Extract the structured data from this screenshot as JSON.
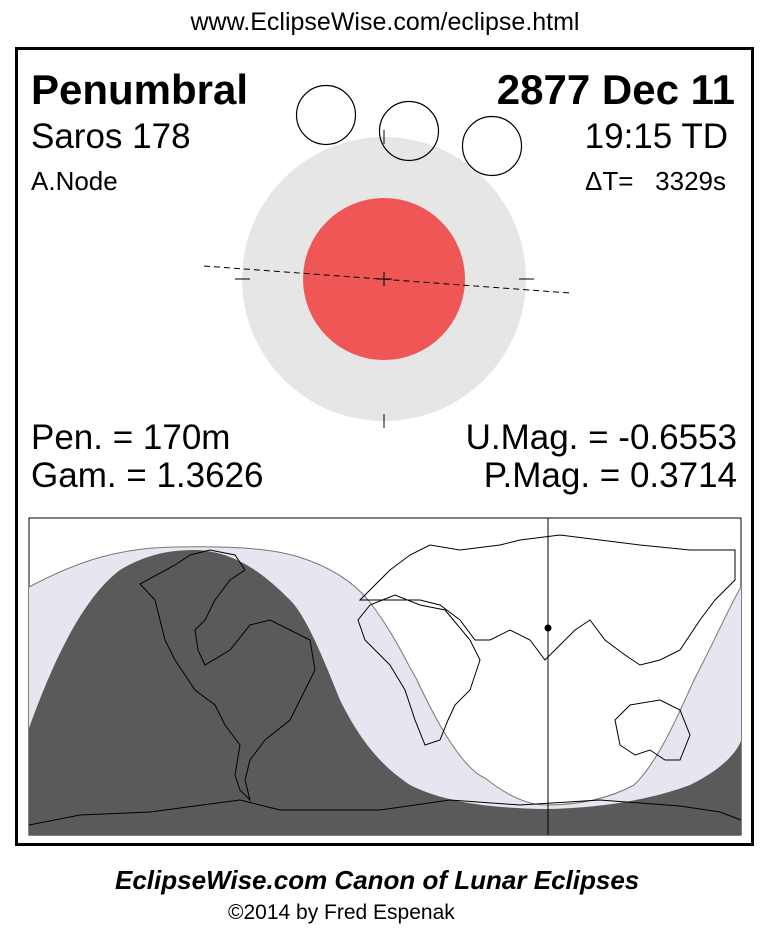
{
  "url": "www.EclipseWise.com/eclipse.html",
  "eclipse_type": "Penumbral",
  "date": "2877 Dec 11",
  "saros": "Saros 178",
  "time": "19:15 TD",
  "node": "A.Node",
  "delta_t": "ΔT=   3329s",
  "pen_duration": "Pen. = 170m",
  "gamma": "Gam. = 1.3626",
  "umbral_mag": "U.Mag. = -0.6553",
  "penumbral_mag": "P.Mag. = 0.3714",
  "footer_title": "EclipseWise.com Canon of Lunar Eclipses",
  "copyright": "©2014 by Fred Espenak",
  "colors": {
    "penumbra": "#e6e6e6",
    "umbra": "#ef5656",
    "night": "#5a5a5a",
    "penumbral_zone": "#e6e6f0"
  }
}
